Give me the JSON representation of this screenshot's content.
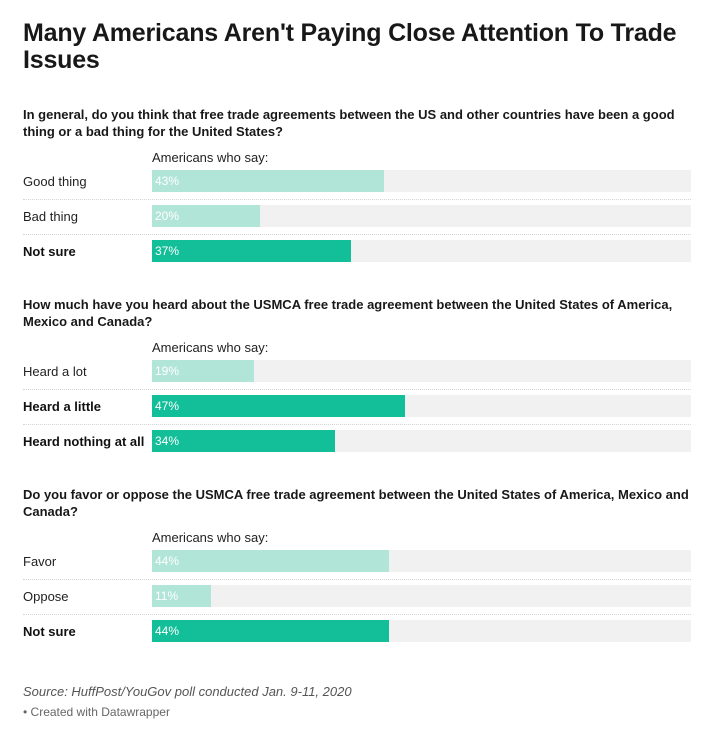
{
  "title": "Many Americans Aren't Paying Close Attention To Trade Issues",
  "subheader": "Americans who say:",
  "source": "Source: HuffPost/YouGov poll conducted Jan. 9-11, 2020",
  "credit": "• Created with Datawrapper",
  "colors": {
    "light": "#b1e5d7",
    "dark": "#13bf98",
    "track": "#f1f1f1"
  },
  "chart_data": [
    {
      "type": "bar",
      "title": "In general, do you think that free trade agreements between the US and other countries have been a good thing or a bad thing for the United States?",
      "xlim": [
        0,
        100
      ],
      "rows": [
        {
          "label": "Good thing",
          "value": 43,
          "text": "43%",
          "highlight": false
        },
        {
          "label": "Bad thing",
          "value": 20,
          "text": "20%",
          "highlight": false
        },
        {
          "label": "Not sure",
          "value": 37,
          "text": "37%",
          "highlight": true
        }
      ]
    },
    {
      "type": "bar",
      "title": "How much have you heard about the USMCA free trade agreement between the United States of America, Mexico and Canada?",
      "xlim": [
        0,
        100
      ],
      "rows": [
        {
          "label": "Heard a lot",
          "value": 19,
          "text": "19%",
          "highlight": false
        },
        {
          "label": "Heard a little",
          "value": 47,
          "text": "47%",
          "highlight": true
        },
        {
          "label": "Heard nothing at all",
          "value": 34,
          "text": "34%",
          "highlight": true
        }
      ]
    },
    {
      "type": "bar",
      "title": "Do you favor or oppose the USMCA free trade agreement between the United States of America, Mexico and Canada?",
      "xlim": [
        0,
        100
      ],
      "rows": [
        {
          "label": "Favor",
          "value": 44,
          "text": "44%",
          "highlight": false
        },
        {
          "label": "Oppose",
          "value": 11,
          "text": "11%",
          "highlight": false
        },
        {
          "label": "Not sure",
          "value": 44,
          "text": "44%",
          "highlight": true
        }
      ]
    }
  ]
}
